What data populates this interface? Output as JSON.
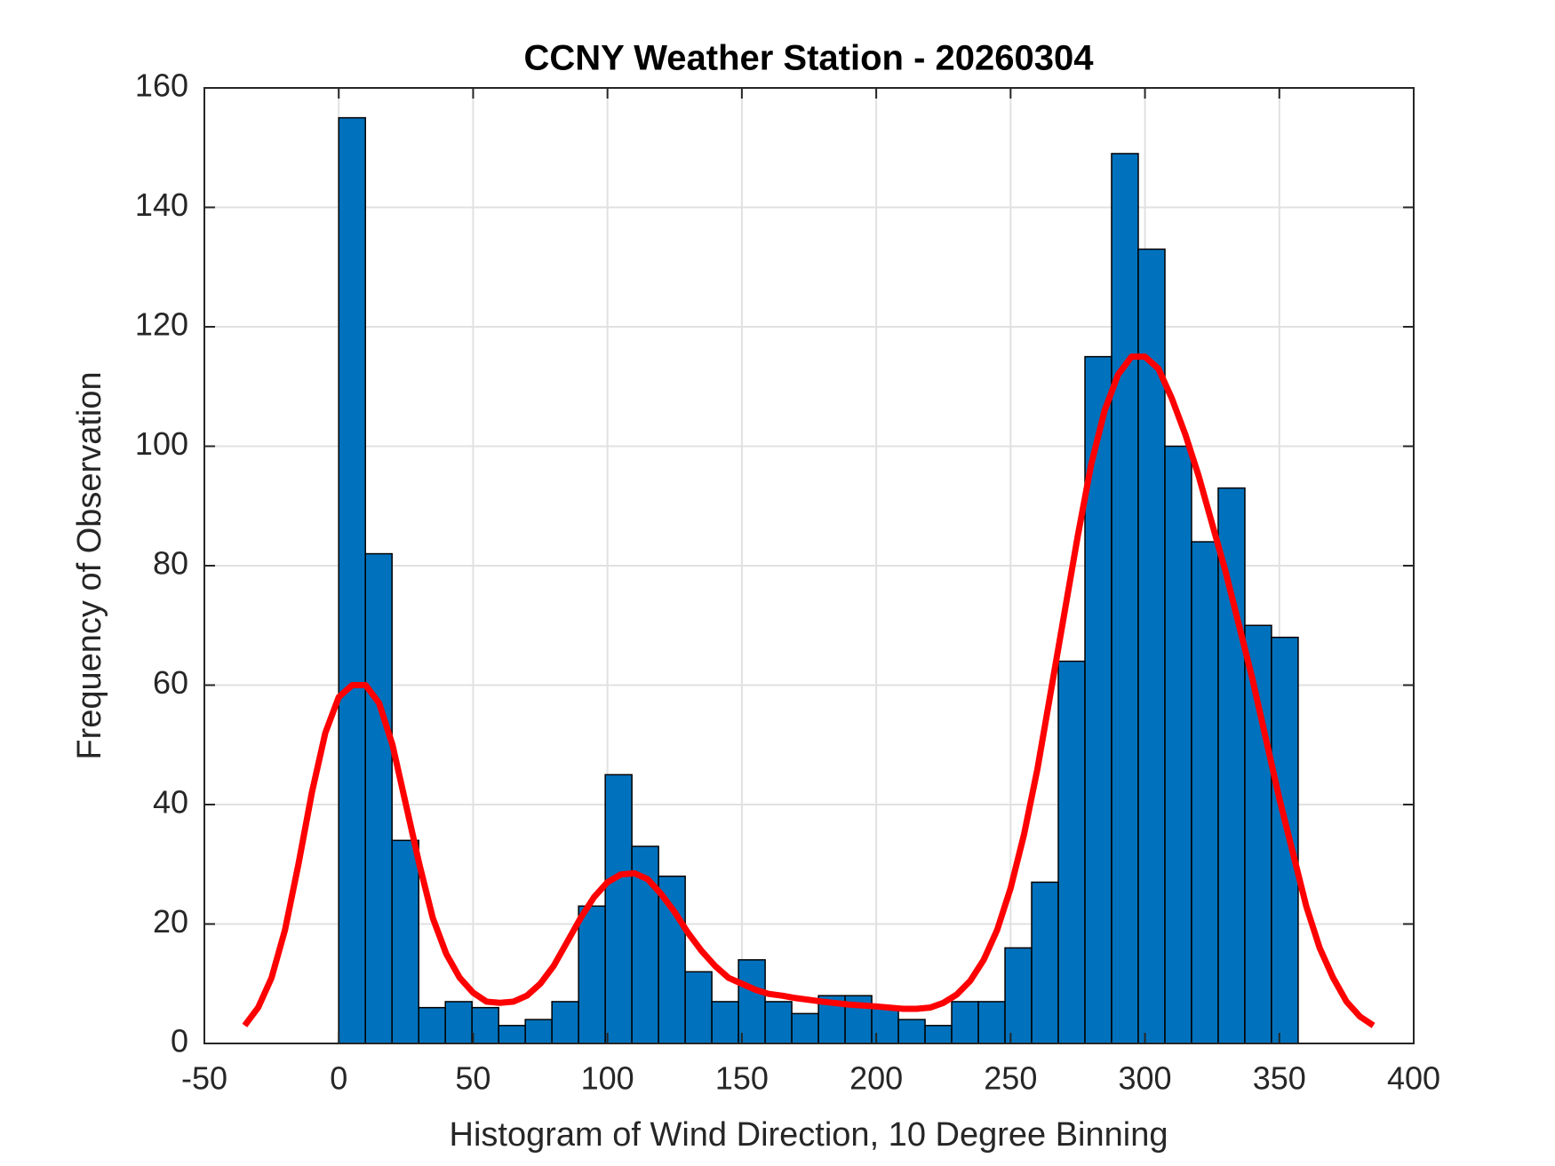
{
  "chart_data": {
    "type": "histogram",
    "title": "CCNY Weather Station - 20260304",
    "xlabel": "Histogram of Wind Direction, 10 Degree Binning",
    "ylabel": "Frequency of Observation",
    "bins": [
      0,
      9.92,
      19.83,
      29.75,
      39.67,
      49.58,
      59.5,
      69.42,
      79.33,
      89.25,
      99.17,
      109.08,
      119,
      128.92,
      138.83,
      148.75,
      158.67,
      168.58,
      178.5,
      188.42,
      198.33,
      208.25,
      218.17,
      228.08,
      238,
      247.92,
      257.83,
      267.75,
      277.67,
      287.58,
      297.5,
      307.42,
      317.33,
      327.25,
      337.17,
      347.08,
      357
    ],
    "values": [
      155,
      82,
      34,
      6,
      7,
      6,
      3,
      4,
      7,
      23,
      45,
      33,
      28,
      12,
      7,
      14,
      7,
      5,
      8,
      8,
      6,
      4,
      3,
      7,
      7,
      16,
      27,
      64,
      115,
      149,
      133,
      100,
      84,
      93,
      70,
      68
    ],
    "color": "#0072bd",
    "xlim": [
      -50,
      400
    ],
    "ylim": [
      0,
      160
    ],
    "xticks": [
      -50,
      0,
      50,
      100,
      150,
      200,
      250,
      300,
      350,
      400
    ],
    "yticks": [
      0,
      20,
      40,
      60,
      80,
      100,
      120,
      140,
      160
    ],
    "grid": true,
    "overlay": {
      "type": "line",
      "color": "#ff0000",
      "x": [
        -35,
        -30,
        -25,
        -20,
        -15,
        -10,
        -5,
        0,
        5,
        10,
        15,
        20,
        25,
        30,
        35,
        40,
        45,
        50,
        55,
        60,
        65,
        70,
        75,
        80,
        85,
        90,
        95,
        100,
        105,
        110,
        115,
        120,
        125,
        130,
        135,
        140,
        145,
        150,
        155,
        160,
        165,
        170,
        180,
        190,
        200,
        210,
        215,
        220,
        225,
        230,
        235,
        240,
        245,
        250,
        255,
        260,
        265,
        270,
        275,
        280,
        285,
        290,
        295,
        300,
        305,
        310,
        315,
        320,
        325,
        330,
        335,
        340,
        345,
        350,
        355,
        360,
        365,
        370,
        375,
        380,
        385
      ],
      "y": [
        3,
        6,
        11,
        19,
        30,
        42,
        52,
        58,
        60,
        60,
        57,
        50,
        40,
        30,
        21,
        15,
        11,
        8.5,
        7,
        6.8,
        7,
        8,
        10,
        13,
        17,
        21,
        24.5,
        27,
        28.3,
        28.5,
        27.5,
        25,
        22,
        18.5,
        15.5,
        13,
        11,
        10,
        9,
        8.3,
        8,
        7.6,
        7,
        6.5,
        6.2,
        5.8,
        5.8,
        6,
        6.8,
        8.2,
        10.5,
        14,
        19,
        26,
        35,
        46,
        59,
        72,
        85,
        97,
        106,
        112,
        115,
        115,
        113,
        108,
        102,
        95,
        87,
        79,
        70,
        61,
        51,
        41,
        32,
        23,
        16,
        11,
        7,
        4.5,
        3
      ]
    }
  }
}
